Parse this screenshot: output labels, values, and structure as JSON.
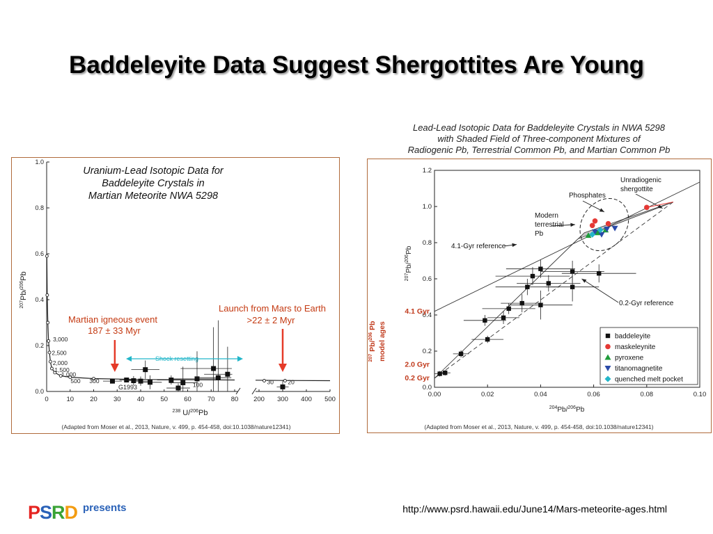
{
  "slide": {
    "title": "Baddeleyite Data Suggest Shergottites Are Young",
    "url": "http://www.psrd.hawaii.edu/June14/Mars-meteorite-ages.html",
    "logo": {
      "letters": [
        "P",
        "S",
        "R",
        "D"
      ],
      "letter_colors": [
        "#e52421",
        "#2a62b8",
        "#3aa335",
        "#f39c12"
      ],
      "tag": "presents"
    }
  },
  "left_chart": {
    "title_lines": [
      "Uranium-Lead Isotopic Data for",
      "Baddeleyite Crystals in",
      "Martian Meteorite NWA 5298"
    ],
    "credit": "(Adapted from Moser et al., 2013, Nature, v. 499, p. 454-458, doi:10.1038/nature12341)",
    "colors": {
      "arrow": "#e53a28",
      "event_text": "#c43a12",
      "shock": "#22b6c9"
    },
    "annotations": {
      "event_line1": "Martian igneous event",
      "event_line2": "187 ± 33 Myr",
      "launch_line1": "Launch from Mars to Earth",
      "launch_line2": ">22 ± 2 Myr",
      "shock": "Shock resetting",
      "g1993": "G1993"
    }
  },
  "right_chart": {
    "title_lines": [
      "Lead-Lead Isotopic Data for Baddeleyite Crystals in NWA 5298",
      "with Shaded Field of Three-component Mixtures of",
      "Radiogenic Pb, Terrestrial Common Pb, and Martian Common Pb"
    ],
    "credit": "(Adapted from Moser et al., 2013, Nature, v. 499, p. 454-458, doi:10.1038/nature12341)",
    "colors": {
      "field": "#c8c8c8",
      "model": "#c0391b"
    },
    "annotations": {
      "phosphates": "Phosphates",
      "unradiogenic_1": "Unradiogenic",
      "unradiogenic_2": "shergottite",
      "modern_1": "Modern",
      "modern_2": "terrestrial",
      "modern_3": "Pb",
      "ref41": "4.1-Gyr reference",
      "ref02": "0.2-Gyr reference"
    },
    "legend": [
      {
        "label": "baddeleyite",
        "marker": "square",
        "color": "#111111"
      },
      {
        "label": "maskeleynite",
        "marker": "circle",
        "color": "#e53935"
      },
      {
        "label": "pyroxene",
        "marker": "triangle-up",
        "color": "#1e9c3a"
      },
      {
        "label": "titanomagnetite",
        "marker": "triangle-down",
        "color": "#2a4aa8"
      },
      {
        "label": "quenched melt pocket",
        "marker": "diamond",
        "color": "#22b6c9"
      }
    ]
  },
  "chart_data": [
    {
      "type": "scatter",
      "title": "Uranium-Lead Isotopic Data for Baddeleyite Crystals in Martian Meteorite NWA 5298",
      "xlabel": "238U/206Pb",
      "ylabel": "207Pb/206Pb",
      "xlim": [
        0,
        500
      ],
      "ylim": [
        0,
        1.0
      ],
      "x_axis_break": [
        80,
        200
      ],
      "x_ticks": [
        "0",
        "10",
        "20",
        "30",
        "40",
        "50",
        "60",
        "70",
        "80",
        "200",
        "300",
        "400",
        "500"
      ],
      "y_ticks": [
        "0.0",
        "0.2",
        "0.4",
        "0.6",
        "0.8",
        "1.0"
      ],
      "concordia": {
        "x": [
          0.1,
          0.25,
          0.5,
          0.8,
          1.2,
          1.6,
          2.2,
          3.5,
          6,
          10,
          20,
          40,
          80,
          300,
          500
        ],
        "y": [
          0.59,
          0.42,
          0.3,
          0.22,
          0.17,
          0.13,
          0.1,
          0.082,
          0.068,
          0.062,
          0.056,
          0.052,
          0.05,
          0.048,
          0.047
        ]
      },
      "concordia_labels": [
        {
          "label": "3,000",
          "x": 1.5,
          "y": 0.227
        },
        {
          "label": "2,500",
          "x": 1.0,
          "y": 0.168
        },
        {
          "label": "2,000",
          "x": 1.4,
          "y": 0.124
        },
        {
          "label": "1,500",
          "x": 2.2,
          "y": 0.094
        },
        {
          "label": "1,000",
          "x": 5.0,
          "y": 0.074
        },
        {
          "label": "500",
          "x": 9.0,
          "y": 0.045
        },
        {
          "label": "300",
          "x": 17.0,
          "y": 0.045
        },
        {
          "label": "100",
          "x": 61.0,
          "y": 0.029
        },
        {
          "label": "30",
          "x": 222.0,
          "y": 0.041
        },
        {
          "label": "20",
          "x": 310.0,
          "y": 0.041
        }
      ],
      "series": [
        {
          "name": "baddeleyite",
          "x": [
            28,
            34,
            37,
            40,
            42,
            44,
            53,
            56,
            58,
            64,
            71,
            73,
            77,
            300
          ],
          "y": [
            0.045,
            0.05,
            0.047,
            0.045,
            0.095,
            0.04,
            0.05,
            0.015,
            0.038,
            0.055,
            0.1,
            0.06,
            0.075,
            0.02
          ],
          "xerr": [
            4,
            3,
            4,
            3,
            6,
            5,
            6,
            5,
            6,
            10,
            14,
            10,
            10,
            25
          ],
          "yerr": [
            0.01,
            0.01,
            0.02,
            0.02,
            0.04,
            0.03,
            0.02,
            0.02,
            0.07,
            0.12,
            0.18,
            0.25,
            0.12,
            0.03
          ]
        }
      ]
    },
    {
      "type": "scatter",
      "title": "Lead-Lead Isotopic Data for Baddeleyite Crystals in NWA 5298 with Shaded Field of Three-component Mixtures of Radiogenic Pb, Terrestrial Common Pb, and Martian Common Pb",
      "xlabel": "204Pb/206Pb",
      "ylabel": "207Pb/206Pb",
      "y2label": "207Pb/206Pb model ages",
      "xlim": [
        0,
        0.1
      ],
      "ylim": [
        0,
        1.2
      ],
      "x_ticks": [
        "0.00",
        "0.02",
        "0.04",
        "0.06",
        "0.08",
        "0.10"
      ],
      "y_ticks": [
        "0.0",
        "0.2",
        "0.4",
        "0.6",
        "0.8",
        "1.0",
        "1.2"
      ],
      "model_ages": [
        {
          "label": "4.1 Gyr",
          "y": 0.42
        },
        {
          "label": "2.0 Gyr",
          "y": 0.125
        },
        {
          "label": "0.2 Gyr",
          "y": 0.05
        }
      ],
      "reference_lines": [
        {
          "name": "4.1-Gyr reference",
          "x": [
            0,
            0.1
          ],
          "y": [
            0.42,
            1.135
          ]
        },
        {
          "name": "0.2-Gyr reference",
          "x": [
            0,
            0.09
          ],
          "y": [
            0.05,
            1.025
          ]
        }
      ],
      "mixing_field": {
        "x": [
          0,
          0.054,
          0.09,
          0.0565,
          0.0
        ],
        "y": [
          0.05,
          0.82,
          1.025,
          0.855,
          0.05
        ]
      },
      "series": [
        {
          "name": "baddeleyite",
          "x": [
            0.002,
            0.004,
            0.01,
            0.019,
            0.02,
            0.026,
            0.028,
            0.033,
            0.035,
            0.037,
            0.04,
            0.04,
            0.043,
            0.052,
            0.052,
            0.062
          ],
          "y": [
            0.075,
            0.08,
            0.185,
            0.37,
            0.265,
            0.385,
            0.435,
            0.465,
            0.555,
            0.615,
            0.655,
            0.455,
            0.575,
            0.64,
            0.555,
            0.63
          ],
          "xerr": [
            0.002,
            0.002,
            0.003,
            0.008,
            0.006,
            0.006,
            0.01,
            0.008,
            0.012,
            0.014,
            0.013,
            0.012,
            0.012,
            0.012,
            0.01,
            0.014
          ],
          "yerr": [
            0.015,
            0.015,
            0.02,
            0.03,
            0.02,
            0.035,
            0.03,
            0.05,
            0.045,
            0.05,
            0.05,
            0.08,
            0.045,
            0.06,
            0.08,
            0.05
          ]
        },
        {
          "name": "maskeleynite",
          "x": [
            0.0595,
            0.0605,
            0.0655,
            0.08
          ],
          "y": [
            0.895,
            0.92,
            0.905,
            0.995
          ]
        },
        {
          "name": "pyroxene",
          "x": [
            0.058,
            0.0615,
            0.0645
          ],
          "y": [
            0.84,
            0.855,
            0.87
          ]
        },
        {
          "name": "titanomagnetite",
          "x": [
            0.0605,
            0.065,
            0.068,
            0.063
          ],
          "y": [
            0.86,
            0.875,
            0.88,
            0.845
          ]
        },
        {
          "name": "quenched melt pocket",
          "x": [
            0.0595,
            0.0625
          ],
          "y": [
            0.845,
            0.87
          ]
        }
      ]
    }
  ]
}
